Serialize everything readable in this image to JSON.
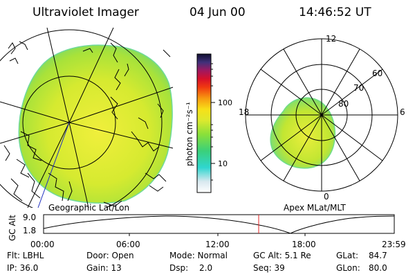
{
  "header": {
    "instrument": "Ultraviolet Imager",
    "date": "04 Jun 00",
    "time": "14:46:52 UT"
  },
  "colorbar": {
    "unit_label": "photon cm⁻²s⁻¹",
    "ticks": [
      "100",
      "10"
    ]
  },
  "panels": {
    "left_caption": "Geographic Lat/Lon",
    "right_caption": "Apex MLat/MLT"
  },
  "polar": {
    "mlt_labels": [
      "12",
      "18",
      "6",
      "0"
    ],
    "lat_labels": [
      "60",
      "70",
      "80"
    ]
  },
  "altitude_plot": {
    "ylabel": "GC Alt",
    "yticks": [
      "9.0",
      "1.8"
    ],
    "xticks": [
      "00:00",
      "06:00",
      "12:00",
      "18:00",
      "23:59"
    ]
  },
  "info": {
    "flt": "Flt: LBHL",
    "ip": "IP: 36.0",
    "door": "Door: Open",
    "gain": "Gain: 13",
    "mode": "Mode: Normal",
    "dsp_label": "Dsp:",
    "dsp_value": "2.0",
    "gcalt": "GC Alt: 5.1 Re",
    "seq": "Seq: 39",
    "glat_label": "GLat:",
    "glat_value": "84.7",
    "glon_label": "GLon:",
    "glon_value": "80.0"
  },
  "colors": {
    "aurora_fill": "#c8e62a",
    "aurora_center": "#e8ee3a",
    "aurora_edge": "#6fdd7a",
    "marker": "#e02020"
  }
}
